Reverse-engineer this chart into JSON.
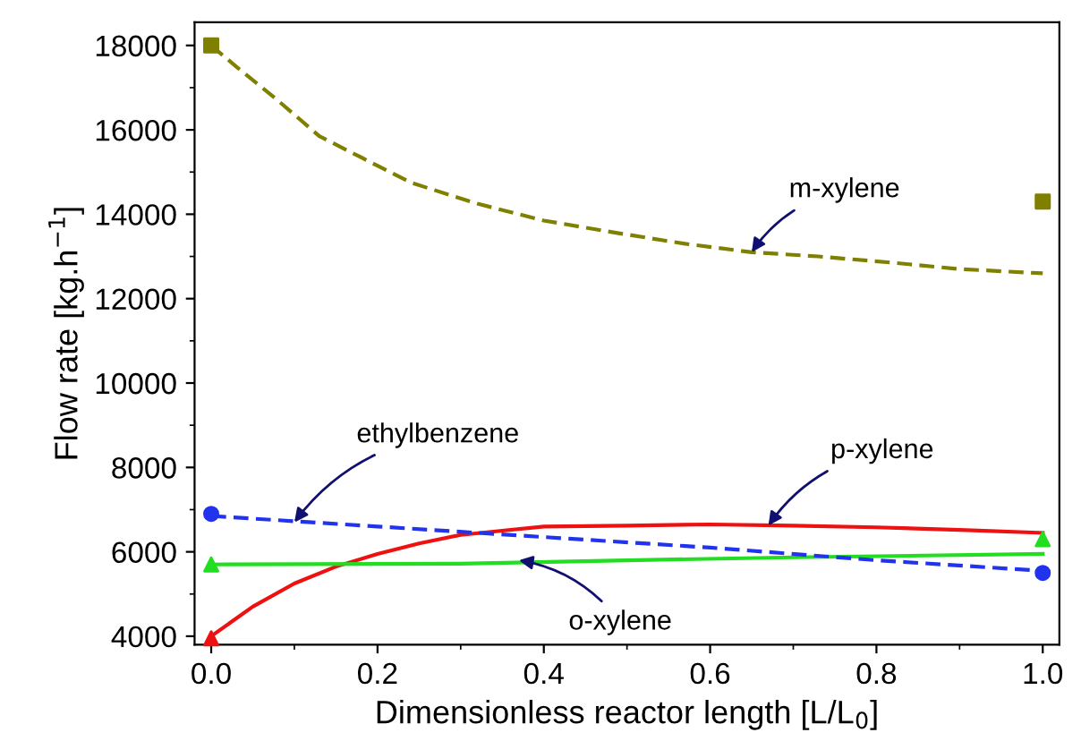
{
  "chart_data": {
    "type": "line",
    "xlabel": "Dimensionless reactor length [L/L$_{0}$]",
    "ylabel": "Flow rate [kg.h$^{−1}$]",
    "xlim": [
      -0.02,
      1.02
    ],
    "ylim": [
      3800,
      18550
    ],
    "xticks": [
      {
        "value": 0,
        "label": "0.0"
      },
      0.2,
      0.4,
      0.6,
      0.8,
      {
        "value": 1,
        "label": "1.0"
      }
    ],
    "yticks": [
      4000,
      6000,
      8000,
      10000,
      12000,
      14000,
      16000,
      18000
    ],
    "grid": false,
    "legend": false,
    "series": [
      {
        "color": "#808000",
        "line_style": "dashed",
        "marker": "none",
        "x": [
          0,
          0.03,
          0.08,
          0.13,
          0.18,
          0.24,
          0.32,
          0.4,
          0.49,
          0.57,
          0.65,
          0.73,
          0.82,
          0.9,
          1.0
        ],
        "values": [
          18000,
          17500,
          16700,
          15850,
          15350,
          14750,
          14250,
          13850,
          13550,
          13300,
          13100,
          13000,
          12850,
          12700,
          12600
        ]
      },
      {
        "color": "#ee1111",
        "line_style": "solid",
        "marker": "none",
        "x": [
          0,
          0.05,
          0.1,
          0.15,
          0.2,
          0.25,
          0.3,
          0.35,
          0.4,
          0.5,
          0.6,
          0.7,
          0.8,
          0.9,
          1.0
        ],
        "values": [
          4000,
          4700,
          5250,
          5650,
          5950,
          6200,
          6400,
          6500,
          6600,
          6620,
          6650,
          6620,
          6580,
          6520,
          6450
        ]
      },
      {
        "color": "#22dd22",
        "line_style": "solid",
        "marker": "none",
        "x": [
          0,
          0.3,
          0.5,
          0.7,
          1.0
        ],
        "values": [
          5700,
          5720,
          5800,
          5870,
          5950
        ]
      },
      {
        "color": "#2233ee",
        "line_style": "dashed",
        "marker": "none",
        "x": [
          0,
          0.2,
          0.4,
          0.6,
          0.8,
          1.0
        ],
        "values": [
          6850,
          6600,
          6350,
          6100,
          5800,
          5550
        ]
      },
      {
        "type": "scatter",
        "color": "#808000",
        "marker": "square",
        "x": [
          0,
          1
        ],
        "values": [
          18000,
          14300
        ]
      },
      {
        "type": "scatter",
        "color": "#ee1111",
        "marker": "triangle",
        "x": [
          0
        ],
        "values": [
          3950
        ]
      },
      {
        "type": "scatter",
        "color": "#22dd22",
        "marker": "triangle",
        "x": [
          0,
          1
        ],
        "values": [
          5700,
          6300
        ]
      },
      {
        "type": "scatter",
        "color": "#2233ee",
        "marker": "circle",
        "x": [
          0,
          1
        ],
        "values": [
          6900,
          5500
        ]
      }
    ],
    "annotations": [
      {
        "text": "m-xylene",
        "x": 0.65,
        "y": 13100
      },
      {
        "text": "ethylbenzene",
        "x": 0.1,
        "y": 6700
      },
      {
        "text": "p-xylene",
        "x": 0.67,
        "y": 6620
      },
      {
        "text": "o-xylene",
        "x": 0.37,
        "y": 5800
      }
    ]
  }
}
